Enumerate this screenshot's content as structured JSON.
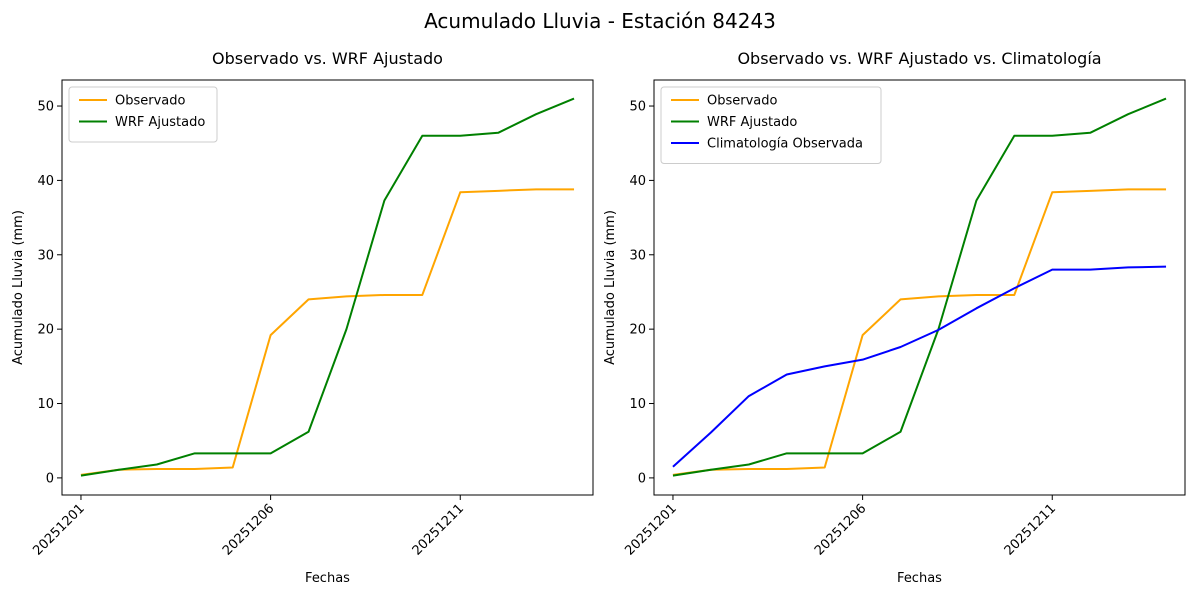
{
  "figure": {
    "title": "Acumulado Lluvia - Estación 84243"
  },
  "chart_data": [
    {
      "type": "line",
      "title": "Observado vs. WRF Ajustado",
      "xlabel": "Fechas",
      "ylabel": "Acumulado Lluvia (mm)",
      "x": [
        "20251201",
        "20251202",
        "20251203",
        "20251204",
        "20251205",
        "20251206",
        "20251207",
        "20251208",
        "20251209",
        "20251210",
        "20251211",
        "20251212",
        "20251213",
        "20251214"
      ],
      "xticks": [
        "20251201",
        "20251206",
        "20251211"
      ],
      "yticks": [
        0,
        10,
        20,
        30,
        40,
        50
      ],
      "ylim": [
        -2.3,
        53.5
      ],
      "legend": "top-left",
      "grid": false,
      "series": [
        {
          "name": "Observado",
          "color": "#ffa500",
          "values": [
            0.4,
            1.1,
            1.2,
            1.2,
            1.4,
            19.2,
            24.0,
            24.4,
            24.6,
            24.6,
            38.4,
            38.6,
            38.8,
            38.8
          ]
        },
        {
          "name": "WRF Ajustado",
          "color": "#008000",
          "values": [
            0.3,
            1.1,
            1.8,
            3.3,
            3.3,
            3.3,
            6.2,
            20.0,
            37.3,
            46.0,
            46.0,
            46.4,
            48.9,
            51.0
          ]
        }
      ]
    },
    {
      "type": "line",
      "title": "Observado vs. WRF Ajustado vs. Climatología",
      "xlabel": "Fechas",
      "ylabel": "Acumulado Lluvia (mm)",
      "x": [
        "20251201",
        "20251202",
        "20251203",
        "20251204",
        "20251205",
        "20251206",
        "20251207",
        "20251208",
        "20251209",
        "20251210",
        "20251211",
        "20251212",
        "20251213",
        "20251214"
      ],
      "xticks": [
        "20251201",
        "20251206",
        "20251211"
      ],
      "yticks": [
        0,
        10,
        20,
        30,
        40,
        50
      ],
      "ylim": [
        -2.3,
        53.5
      ],
      "legend": "top-left",
      "grid": false,
      "series": [
        {
          "name": "Observado",
          "color": "#ffa500",
          "values": [
            0.4,
            1.1,
            1.2,
            1.2,
            1.4,
            19.2,
            24.0,
            24.4,
            24.6,
            24.6,
            38.4,
            38.6,
            38.8,
            38.8
          ]
        },
        {
          "name": "WRF Ajustado",
          "color": "#008000",
          "values": [
            0.3,
            1.1,
            1.8,
            3.3,
            3.3,
            3.3,
            6.2,
            20.0,
            37.3,
            46.0,
            46.0,
            46.4,
            48.9,
            51.0
          ]
        },
        {
          "name": "Climatología Observada",
          "color": "#0000ff",
          "values": [
            1.5,
            6.1,
            11.0,
            13.9,
            15.0,
            15.9,
            17.6,
            19.9,
            22.8,
            25.5,
            28.0,
            28.0,
            28.3,
            28.4
          ]
        }
      ]
    }
  ]
}
